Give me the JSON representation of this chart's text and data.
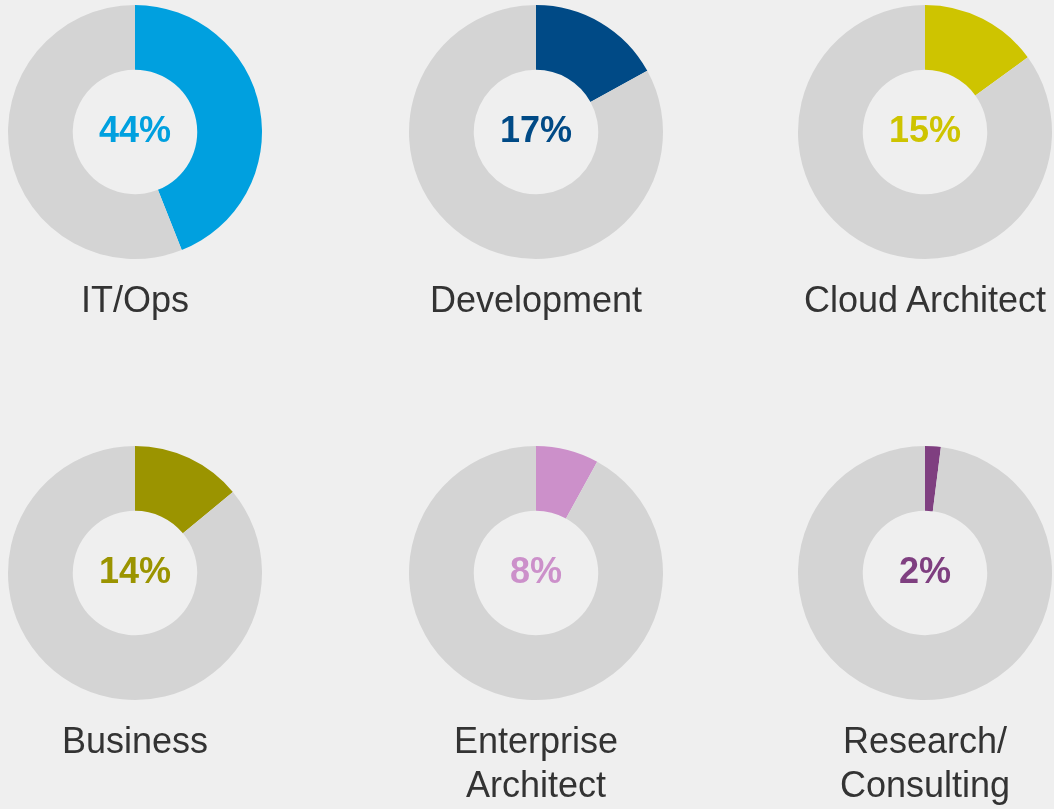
{
  "chart_data": [
    {
      "type": "donut",
      "title": "IT/Ops",
      "categories": [
        null,
        null
      ],
      "values": [
        44,
        56
      ],
      "colors": [
        "#00a0df",
        "#d4d4d4"
      ],
      "value_labels": [
        "44%",
        null
      ]
    },
    {
      "type": "donut",
      "title": "Development",
      "categories": [
        null,
        null
      ],
      "values": [
        17,
        83
      ],
      "colors": [
        "#004a86",
        "#d4d4d4"
      ],
      "value_labels": [
        "17%",
        null
      ]
    },
    {
      "type": "donut",
      "title": "Cloud Architect",
      "categories": [
        null,
        null
      ],
      "values": [
        15,
        85
      ],
      "colors": [
        "#cec400",
        "#d4d4d4"
      ],
      "value_labels": [
        "15%",
        null
      ]
    },
    {
      "type": "donut",
      "title": "Business",
      "categories": [
        null,
        null
      ],
      "values": [
        14,
        86
      ],
      "colors": [
        "#9b9400",
        "#d4d4d4"
      ],
      "value_labels": [
        "14%",
        null
      ]
    },
    {
      "type": "donut",
      "title": "Enterprise Architect",
      "categories": [
        null,
        null
      ],
      "values": [
        8,
        92
      ],
      "colors": [
        "#cc90ca",
        "#d4d4d4"
      ],
      "value_labels": [
        "8%",
        null
      ]
    },
    {
      "type": "donut",
      "title": "Research/Consulting",
      "categories": [
        null,
        null
      ],
      "values": [
        2,
        98
      ],
      "colors": [
        "#7f3f80",
        "#d4d4d4"
      ],
      "value_labels": [
        "2%",
        null
      ]
    }
  ]
}
